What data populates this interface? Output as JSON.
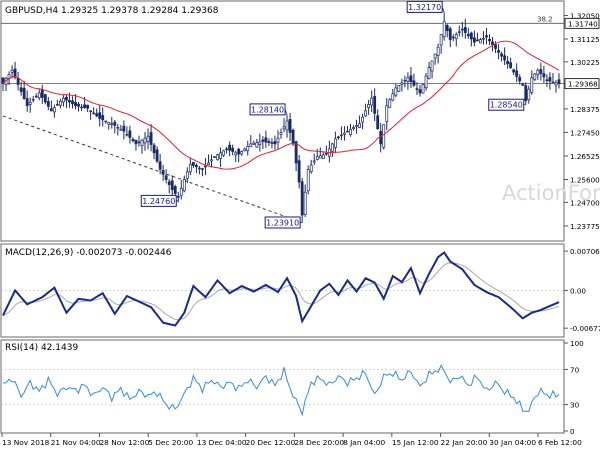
{
  "chart_data": [
    {
      "type": "candlestick",
      "panel": "price",
      "title": "GBPUSD,H4  1.29325 1.29378 1.29284 1.29368",
      "ylim": [
        1.233,
        1.325
      ],
      "y_ticks": [
        "1.32050",
        "1.31125",
        "1.30225",
        "1.29368",
        "1.28375",
        "1.27450",
        "1.26525",
        "1.25600",
        "1.24700",
        "1.23775"
      ],
      "last_price_label": "1.29368",
      "last_price": 1.29368,
      "moving_average_color": "#e8202a",
      "candle_color": "#1a2a66",
      "horizontal_levels": [
        {
          "label": "38.2",
          "value": 1.3174,
          "price_label": "1.31740"
        },
        {
          "label": "",
          "value": 1.29368,
          "price_label": ""
        }
      ],
      "annotations": [
        {
          "label": "1.32170",
          "value": 1.3217,
          "bar": 146
        },
        {
          "label": "1.28540",
          "value": 1.2854,
          "bar": 173
        },
        {
          "label": "1.28140",
          "value": 1.2814,
          "bar": 94
        },
        {
          "label": "1.24760",
          "value": 1.2476,
          "bar": 58
        },
        {
          "label": "1.23910",
          "value": 1.2391,
          "bar": 99
        }
      ],
      "trendline": {
        "from": {
          "bar": 0,
          "value": 1.281
        },
        "to": {
          "bar": 99,
          "value": 1.2391
        }
      },
      "anchors": [
        [
          0,
          1.294
        ],
        [
          3,
          1.299
        ],
        [
          8,
          1.285
        ],
        [
          12,
          1.29
        ],
        [
          16,
          1.283
        ],
        [
          20,
          1.288
        ],
        [
          24,
          1.285
        ],
        [
          28,
          1.284
        ],
        [
          32,
          1.28
        ],
        [
          36,
          1.278
        ],
        [
          40,
          1.275
        ],
        [
          44,
          1.27
        ],
        [
          48,
          1.273
        ],
        [
          52,
          1.26
        ],
        [
          56,
          1.252
        ],
        [
          58,
          1.249
        ],
        [
          60,
          1.256
        ],
        [
          62,
          1.262
        ],
        [
          66,
          1.26
        ],
        [
          70,
          1.265
        ],
        [
          74,
          1.268
        ],
        [
          78,
          1.266
        ],
        [
          82,
          1.27
        ],
        [
          86,
          1.271
        ],
        [
          90,
          1.27
        ],
        [
          94,
          1.279
        ],
        [
          96,
          1.27
        ],
        [
          98,
          1.255
        ],
        [
          99,
          1.242
        ],
        [
          101,
          1.26
        ],
        [
          104,
          1.265
        ],
        [
          107,
          1.266
        ],
        [
          110,
          1.272
        ],
        [
          114,
          1.275
        ],
        [
          118,
          1.278
        ],
        [
          122,
          1.288
        ],
        [
          125,
          1.27
        ],
        [
          127,
          1.285
        ],
        [
          130,
          1.292
        ],
        [
          134,
          1.296
        ],
        [
          138,
          1.29
        ],
        [
          141,
          1.3
        ],
        [
          144,
          1.308
        ],
        [
          146,
          1.318
        ],
        [
          148,
          1.311
        ],
        [
          152,
          1.315
        ],
        [
          156,
          1.31
        ],
        [
          160,
          1.312
        ],
        [
          164,
          1.306
        ],
        [
          168,
          1.3
        ],
        [
          172,
          1.293
        ],
        [
          173,
          1.287
        ],
        [
          175,
          1.296
        ],
        [
          177,
          1.299
        ],
        [
          180,
          1.295
        ],
        [
          184,
          1.2937
        ]
      ]
    },
    {
      "type": "line",
      "panel": "macd",
      "title": "MACD(12,26,9) -0.002073 -0.002446",
      "ylim": [
        -0.008,
        0.0078
      ],
      "y_ticks": [
        "0.007063",
        "0.00",
        "-0.006774"
      ],
      "main_color": "#1a2a8a",
      "signal_color": "#aaaaaa",
      "anchors": [
        [
          0,
          -0.0045
        ],
        [
          4,
          0.0
        ],
        [
          8,
          -0.0025
        ],
        [
          13,
          -0.0012
        ],
        [
          17,
          0.0005
        ],
        [
          21,
          -0.004
        ],
        [
          25,
          -0.0015
        ],
        [
          29,
          -0.0018
        ],
        [
          33,
          -0.0005
        ],
        [
          37,
          -0.0042
        ],
        [
          41,
          -0.001
        ],
        [
          45,
          -0.002
        ],
        [
          49,
          -0.003
        ],
        [
          53,
          -0.0058
        ],
        [
          57,
          -0.0063
        ],
        [
          60,
          -0.004
        ],
        [
          63,
          0.0008
        ],
        [
          67,
          -0.0012
        ],
        [
          71,
          0.0018
        ],
        [
          75,
          -0.0005
        ],
        [
          79,
          0.0008
        ],
        [
          83,
          -0.0002
        ],
        [
          87,
          0.001
        ],
        [
          91,
          -0.0003
        ],
        [
          94,
          0.0022
        ],
        [
          97,
          -0.001
        ],
        [
          99,
          -0.0055
        ],
        [
          102,
          -0.0028
        ],
        [
          105,
          0.0
        ],
        [
          108,
          0.0012
        ],
        [
          111,
          -0.0008
        ],
        [
          114,
          0.0018
        ],
        [
          117,
          -0.0002
        ],
        [
          120,
          0.0022
        ],
        [
          123,
          0.0014
        ],
        [
          126,
          -0.0015
        ],
        [
          129,
          0.0026
        ],
        [
          132,
          0.0015
        ],
        [
          135,
          0.004
        ],
        [
          138,
          -0.0005
        ],
        [
          141,
          0.003
        ],
        [
          144,
          0.006
        ],
        [
          146,
          0.0068
        ],
        [
          148,
          0.0052
        ],
        [
          152,
          0.0038
        ],
        [
          156,
          0.001
        ],
        [
          160,
          -0.0003
        ],
        [
          164,
          -0.0012
        ],
        [
          168,
          -0.003
        ],
        [
          172,
          -0.005
        ],
        [
          175,
          -0.004
        ],
        [
          178,
          -0.0035
        ],
        [
          181,
          -0.0028
        ],
        [
          184,
          -0.0021
        ]
      ]
    },
    {
      "type": "line",
      "panel": "rsi",
      "title": "RSI(14) 42.1439",
      "ylim": [
        0,
        100
      ],
      "y_ticks": [
        "100",
        "70",
        "30",
        "0"
      ],
      "levels": [
        70,
        30
      ],
      "line_color": "#3a8ad8",
      "anchors": [
        [
          0,
          52
        ],
        [
          3,
          60
        ],
        [
          6,
          40
        ],
        [
          9,
          55
        ],
        [
          12,
          45
        ],
        [
          15,
          58
        ],
        [
          18,
          42
        ],
        [
          21,
          50
        ],
        [
          24,
          46
        ],
        [
          27,
          52
        ],
        [
          30,
          40
        ],
        [
          33,
          50
        ],
        [
          36,
          38
        ],
        [
          39,
          48
        ],
        [
          42,
          36
        ],
        [
          45,
          45
        ],
        [
          48,
          40
        ],
        [
          51,
          44
        ],
        [
          54,
          30
        ],
        [
          57,
          25
        ],
        [
          60,
          42
        ],
        [
          63,
          60
        ],
        [
          66,
          48
        ],
        [
          69,
          58
        ],
        [
          72,
          50
        ],
        [
          75,
          55
        ],
        [
          78,
          48
        ],
        [
          81,
          58
        ],
        [
          84,
          50
        ],
        [
          87,
          62
        ],
        [
          90,
          52
        ],
        [
          93,
          68
        ],
        [
          96,
          40
        ],
        [
          99,
          22
        ],
        [
          102,
          55
        ],
        [
          105,
          60
        ],
        [
          108,
          52
        ],
        [
          111,
          62
        ],
        [
          114,
          55
        ],
        [
          117,
          60
        ],
        [
          120,
          66
        ],
        [
          123,
          40
        ],
        [
          126,
          62
        ],
        [
          129,
          66
        ],
        [
          132,
          58
        ],
        [
          135,
          68
        ],
        [
          138,
          50
        ],
        [
          141,
          64
        ],
        [
          144,
          70
        ],
        [
          146,
          70
        ],
        [
          148,
          55
        ],
        [
          151,
          63
        ],
        [
          154,
          52
        ],
        [
          157,
          62
        ],
        [
          160,
          45
        ],
        [
          163,
          55
        ],
        [
          166,
          45
        ],
        [
          169,
          38
        ],
        [
          172,
          25
        ],
        [
          174,
          22
        ],
        [
          176,
          40
        ],
        [
          178,
          45
        ],
        [
          181,
          40
        ],
        [
          184,
          42
        ]
      ]
    }
  ],
  "x_axis": {
    "labels": [
      "13 Nov 2018",
      "21 Nov 04:00",
      "28 Nov 12:00",
      "5 Dec 20:00",
      "13 Dec 04:00",
      "20 Dec 12:00",
      "28 Dec 20:00",
      "8 Jan 04:00",
      "15 Jan 12:00",
      "22 Jan 20:00",
      "30 Jan 04:00",
      "6 Feb 12:00"
    ]
  },
  "watermark": "ActionForex.com"
}
